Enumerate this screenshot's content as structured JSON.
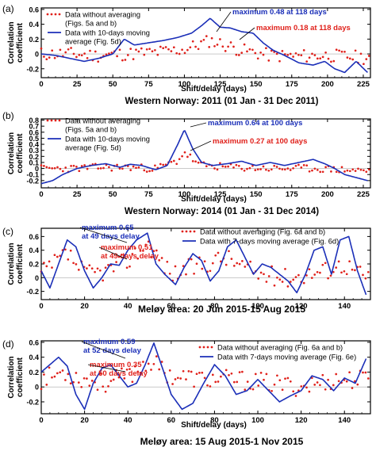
{
  "colors": {
    "raw": "#e0211b",
    "smooth": "#1b2fb8",
    "axis": "#000000"
  },
  "chart_data": [
    {
      "type": "line",
      "panel_label": "(a)",
      "title": "Western Norway: 2011 (01 Jan - 31 Dec 2011)",
      "xlabel": "Shift/delay (days)",
      "ylabel": "Correlation coefficient",
      "xlim": [
        0,
        230
      ],
      "ylim": [
        -0.32,
        0.62
      ],
      "xticks": [
        0,
        25,
        50,
        75,
        100,
        125,
        150,
        175,
        200,
        225
      ],
      "yticks": [
        -0.2,
        0,
        0.2,
        0.4,
        0.6
      ],
      "ytick_labels": [
        "-0.2",
        "0",
        "0.2",
        "0.4",
        "0.6"
      ],
      "legend": [
        "Data without averaging (Figs. 5a and b)",
        "Data with 10-days moving average (Fig. 5d)"
      ],
      "annotations": {
        "smooth": "maximum 0.48 at 118 days",
        "raw": "maximum 0.18 at 118 days"
      },
      "series": [
        {
          "name": "Data without averaging (Figs. 5a and b)",
          "style": "points",
          "seed": 11,
          "amp": 0.09,
          "x": [
            0,
            20,
            40,
            60,
            80,
            100,
            118,
            140,
            160,
            180,
            200,
            228
          ],
          "y": [
            0.0,
            0.0,
            -0.02,
            0.0,
            0.02,
            0.06,
            0.18,
            0.05,
            -0.02,
            -0.03,
            -0.02,
            -0.05
          ]
        },
        {
          "name": "Data with 10-days moving average (Fig. 5d)",
          "style": "line",
          "x": [
            0,
            10,
            20,
            30,
            40,
            50,
            58,
            65,
            75,
            85,
            95,
            105,
            112,
            118,
            125,
            132,
            140,
            148,
            155,
            162,
            170,
            180,
            190,
            198,
            205,
            212,
            220,
            228
          ],
          "y": [
            0.0,
            -0.02,
            -0.06,
            -0.1,
            -0.06,
            0.0,
            0.2,
            0.12,
            0.15,
            0.18,
            0.22,
            0.28,
            0.38,
            0.48,
            0.36,
            0.35,
            0.3,
            0.28,
            0.15,
            0.05,
            -0.02,
            -0.12,
            -0.15,
            -0.1,
            -0.2,
            -0.25,
            -0.1,
            -0.25
          ]
        }
      ]
    },
    {
      "type": "line",
      "panel_label": "(b)",
      "title": "Western Norway: 2014 (01 Jan - 31 Dec 2014)",
      "xlabel": "Shift/delay (days)",
      "ylabel": "Correlation coefficient",
      "xlim": [
        0,
        230
      ],
      "ylim": [
        -0.32,
        0.82
      ],
      "xticks": [
        0,
        25,
        50,
        75,
        100,
        125,
        150,
        175,
        200,
        225
      ],
      "yticks": [
        -0.2,
        -0.1,
        0,
        0.1,
        0.2,
        0.3,
        0.4,
        0.5,
        0.6,
        0.7,
        0.8
      ],
      "ytick_labels": [
        "-0.2",
        "-0.1",
        "0",
        "0.1",
        "0.2",
        "0.3",
        "0.4",
        "0.5",
        "0.6",
        "0.7",
        "0.8"
      ],
      "legend": [
        "Data without averaging (Figs. 5a and b)",
        "Data with 10-days moving average (Fig. 5d)"
      ],
      "annotations": {
        "smooth": "maximum 0.64 at 100 days",
        "raw": "maximum 0.27 at 100 days"
      },
      "series": [
        {
          "name": "Data without averaging (Figs. 5a and b)",
          "style": "points",
          "seed": 23,
          "amp": 0.06,
          "x": [
            0,
            20,
            40,
            60,
            80,
            95,
            100,
            110,
            130,
            160,
            190,
            228
          ],
          "y": [
            0.0,
            0.0,
            0.02,
            0.02,
            0.0,
            0.12,
            0.27,
            0.06,
            0.02,
            0.0,
            0.0,
            -0.04
          ]
        },
        {
          "name": "Data with 10-days moving average (Fig. 5d)",
          "style": "line",
          "x": [
            0,
            8,
            15,
            25,
            35,
            45,
            55,
            62,
            70,
            80,
            88,
            95,
            100,
            106,
            112,
            120,
            130,
            140,
            150,
            160,
            170,
            180,
            190,
            198,
            205,
            212,
            220,
            228
          ],
          "y": [
            -0.25,
            -0.2,
            -0.1,
            0.0,
            0.05,
            0.08,
            0.02,
            0.07,
            0.05,
            -0.02,
            0.05,
            0.38,
            0.64,
            0.32,
            0.1,
            0.05,
            0.08,
            0.12,
            0.05,
            0.1,
            0.05,
            0.1,
            0.15,
            0.08,
            0.0,
            -0.1,
            -0.15,
            -0.2
          ]
        }
      ]
    },
    {
      "type": "line",
      "panel_label": "(c)",
      "title": "Meløy area: 20 Jun 2015-15 Aug 2015",
      "xlabel": "",
      "ylabel": "Correlation coefficient",
      "xlim": [
        0,
        152
      ],
      "ylim": [
        -0.32,
        0.72
      ],
      "xticks": [
        0,
        20,
        40,
        60,
        80,
        100,
        120,
        140
      ],
      "yticks": [
        -0.2,
        0,
        0.2,
        0.4,
        0.6
      ],
      "ytick_labels": [
        "-0.2",
        "0",
        "0.2",
        "0.4",
        "0.6"
      ],
      "legend": [
        "Data without averaging (Fig. 6a and b)",
        "Data with 7-days moving average (Fig. 6d)"
      ],
      "annotations": {
        "smooth": "maximum 0.65 at 49 days delay",
        "raw": "maximum 0.51 at 49 days delay"
      },
      "series": [
        {
          "name": "Data without averaging (Fig. 6a and b)",
          "style": "points",
          "seed": 37,
          "amp": 0.14,
          "x": [
            0,
            12,
            20,
            30,
            40,
            49,
            60,
            70,
            85,
            100,
            115,
            130,
            140,
            150
          ],
          "y": [
            0.05,
            0.35,
            0.05,
            0.1,
            0.25,
            0.51,
            0.05,
            0.15,
            0.3,
            0.05,
            0.0,
            0.1,
            0.2,
            0.0
          ]
        },
        {
          "name": "Data with 7-days moving average (Fig. 6d)",
          "style": "line",
          "x": [
            0,
            4,
            8,
            12,
            16,
            20,
            24,
            28,
            32,
            36,
            40,
            44,
            49,
            53,
            57,
            62,
            66,
            70,
            74,
            78,
            82,
            86,
            90,
            94,
            98,
            102,
            106,
            110,
            114,
            118,
            122,
            126,
            130,
            134,
            138,
            142,
            146,
            150
          ],
          "y": [
            0.1,
            -0.15,
            0.2,
            0.55,
            0.45,
            0.1,
            -0.15,
            0.0,
            0.2,
            0.18,
            0.4,
            0.55,
            0.65,
            0.2,
            0.05,
            -0.1,
            0.15,
            0.35,
            0.25,
            -0.05,
            0.1,
            0.45,
            0.55,
            0.3,
            0.05,
            0.2,
            0.15,
            0.05,
            -0.05,
            -0.22,
            0.05,
            0.4,
            0.45,
            0.05,
            0.55,
            0.6,
            0.1,
            -0.25
          ]
        }
      ]
    },
    {
      "type": "line",
      "panel_label": "(d)",
      "title": "Meløy area: 15 Aug 2015-1 Nov 2015",
      "xlabel": "Shift/delay (days)",
      "ylabel": "Correlation coefficient",
      "xlim": [
        0,
        152
      ],
      "ylim": [
        -0.36,
        0.62
      ],
      "xticks": [
        0,
        20,
        40,
        60,
        80,
        100,
        120,
        140
      ],
      "yticks": [
        -0.2,
        0,
        0.2,
        0.4,
        0.6
      ],
      "ytick_labels": [
        "-0.2",
        "0",
        "0.2",
        "0.4",
        "0.6"
      ],
      "legend": [
        "Data without averaging (Fig. 6a and b)",
        "Data with 7-days moving average (Fig. 6e)"
      ],
      "annotations": {
        "smooth": "maximum 0.59 at 52 days delay",
        "raw": "maximum 0.35 at 50 days delay"
      },
      "series": [
        {
          "name": "Data without averaging (Fig. 6a and b)",
          "style": "points",
          "seed": 53,
          "amp": 0.13,
          "x": [
            0,
            10,
            20,
            30,
            40,
            50,
            60,
            75,
            90,
            105,
            120,
            135,
            150
          ],
          "y": [
            0.1,
            0.2,
            0.1,
            0.05,
            0.15,
            0.35,
            0.15,
            0.1,
            0.1,
            0.05,
            0.0,
            0.1,
            0.1
          ]
        },
        {
          "name": "Data with 7-days moving average (Fig. 6e)",
          "style": "line",
          "x": [
            0,
            4,
            8,
            12,
            16,
            20,
            24,
            28,
            32,
            36,
            40,
            44,
            48,
            52,
            56,
            60,
            65,
            70,
            75,
            80,
            85,
            90,
            95,
            100,
            105,
            110,
            115,
            120,
            125,
            130,
            135,
            140,
            145,
            150
          ],
          "y": [
            0.2,
            0.3,
            0.4,
            0.28,
            -0.1,
            -0.3,
            0.05,
            0.25,
            0.3,
            0.15,
            0.0,
            0.05,
            0.3,
            0.59,
            0.25,
            -0.1,
            -0.3,
            -0.22,
            0.05,
            0.3,
            0.15,
            -0.1,
            -0.05,
            0.1,
            -0.05,
            -0.2,
            -0.12,
            -0.05,
            0.15,
            0.1,
            -0.05,
            0.12,
            0.05,
            0.38
          ]
        }
      ]
    }
  ]
}
